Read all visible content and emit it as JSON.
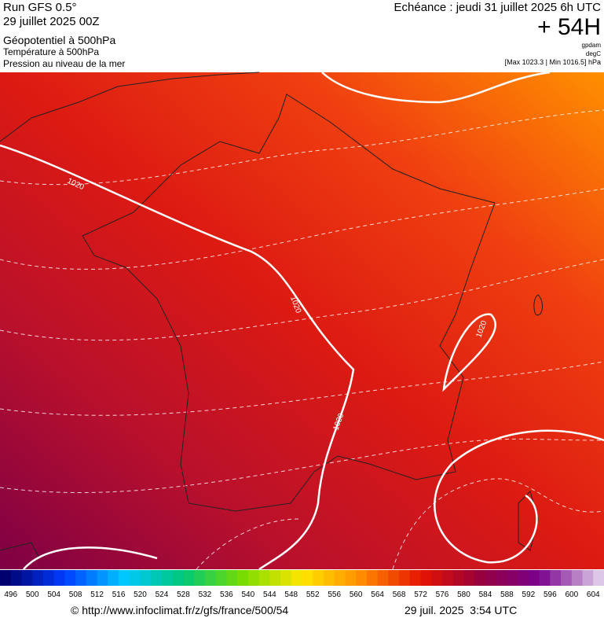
{
  "header": {
    "run": "Run GFS 0.5°",
    "run_date": "29 juillet 2025 00Z",
    "field_1": "Géopotentiel à 500hPa",
    "field_2": "Température à 500hPa",
    "field_3": "Pression au niveau de la mer",
    "forecast": "Echéance : jeudi 31 juillet 2025 6h UTC",
    "lead_time": "+ 54H",
    "unit_1": "gpdam",
    "unit_2": "degC",
    "pressure_range": "[Max 1023.3 | Min 1016.5] hPa"
  },
  "map": {
    "isobar_labels": [
      "1020",
      "1020",
      "1020",
      "1020"
    ]
  },
  "legend": {
    "labels": [
      496,
      500,
      504,
      508,
      512,
      516,
      520,
      524,
      528,
      532,
      536,
      540,
      544,
      548,
      552,
      556,
      560,
      564,
      568,
      572,
      576,
      580,
      584,
      588,
      592,
      596,
      600,
      604
    ]
  },
  "footer": {
    "source": "© http://www.infoclimat.fr/z/gfs/france/500/54",
    "timestamp": "29 juil. 2025  3:54 UTC"
  }
}
